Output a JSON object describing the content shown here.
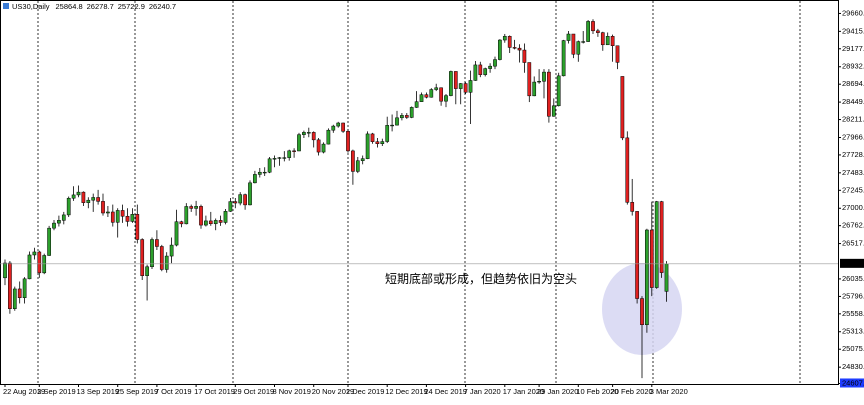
{
  "chart_data": {
    "type": "candlestick",
    "title": "US30,Daily",
    "annotation": "短期底部或形成，但趋势依旧为空头",
    "up_color": "#2ca02c",
    "down_color": "#e02020",
    "grid": false,
    "ylim": [
      24600,
      29830
    ],
    "yticks": [
      {
        "value": 29660,
        "label": "29660.0"
      },
      29415.5,
      29177.5,
      {
        "value": 28932,
        "label": "28932.0"
      },
      {
        "value": 28694,
        "label": "28694.0"
      },
      28449.5,
      {
        "value": 28211,
        "label": "28211.0"
      },
      {
        "value": 27966,
        "label": "27966.0"
      },
      {
        "value": 27728,
        "label": "27728.0"
      },
      27483.5,
      {
        "value": 27245,
        "label": "27245.0"
      },
      {
        "value": 27000,
        "label": "27000.0"
      },
      {
        "value": 26762,
        "label": "26762.0"
      },
      26517.5,
      {
        "value": 26035,
        "label": "26035.0"
      },
      {
        "value": 25796,
        "label": "25796.0"
      },
      {
        "value": 25558,
        "label": "25558.0"
      },
      25313.5,
      {
        "value": 25075,
        "label": "25075.0"
      },
      {
        "value": 24830,
        "label": "24830.0"
      },
      24607.1
    ],
    "categories": [
      "22 Aug 2019",
      null,
      null,
      null,
      null,
      null,
      null,
      "3 Sep 2019",
      null,
      null,
      null,
      null,
      null,
      null,
      null,
      "13 Sep 2019",
      null,
      null,
      null,
      null,
      null,
      null,
      null,
      "25 Sep 2019",
      null,
      null,
      null,
      null,
      null,
      null,
      null,
      "7 Oct 2019",
      null,
      null,
      null,
      null,
      null,
      null,
      null,
      "17 Oct 2019",
      null,
      null,
      null,
      null,
      null,
      null,
      null,
      "29 Oct 2019",
      null,
      null,
      null,
      null,
      null,
      null,
      null,
      "8 Nov 2019",
      null,
      null,
      null,
      null,
      null,
      null,
      null,
      "20 Nov 2019",
      null,
      null,
      null,
      null,
      null,
      null,
      "2 Dec 2019",
      null,
      null,
      null,
      null,
      null,
      null,
      null,
      "12 Dec 2019",
      null,
      null,
      null,
      null,
      null,
      null,
      null,
      "24 Dec 2019",
      null,
      null,
      null,
      null,
      null,
      null,
      null,
      "7 Jan 2020",
      null,
      null,
      null,
      null,
      null,
      null,
      null,
      "17 Jan 2020",
      null,
      null,
      null,
      null,
      null,
      null,
      "29 Jan 2020",
      null,
      null,
      null,
      null,
      null,
      null,
      null,
      "10 Feb 2020",
      null,
      null,
      null,
      null,
      null,
      null,
      "20 Feb 2020",
      null,
      null,
      null,
      null,
      null,
      null,
      null,
      "3 Mar 2020",
      null,
      null,
      null
    ],
    "candles": [
      [
        26050,
        26300,
        25950,
        26252
      ],
      [
        26252,
        26280,
        25560,
        25628
      ],
      [
        25628,
        25930,
        25600,
        25898
      ],
      [
        25898,
        26000,
        25700,
        25778
      ],
      [
        25778,
        26060,
        25700,
        26036
      ],
      [
        26036,
        26410,
        26030,
        26362
      ],
      [
        26362,
        26460,
        26300,
        26403
      ],
      [
        26403,
        26420,
        26050,
        26118
      ],
      [
        26118,
        26380,
        26100,
        26355
      ],
      [
        26355,
        26760,
        26350,
        26728
      ],
      [
        26728,
        26840,
        26700,
        26797
      ],
      [
        26797,
        26900,
        26750,
        26835
      ],
      [
        26835,
        26950,
        26780,
        26909
      ],
      [
        26909,
        27160,
        26880,
        27137
      ],
      [
        27137,
        27300,
        27100,
        27182
      ],
      [
        27182,
        27310,
        27150,
        27220
      ],
      [
        27220,
        27230,
        27030,
        27076
      ],
      [
        27076,
        27150,
        27000,
        27110
      ],
      [
        27110,
        27200,
        26950,
        27147
      ],
      [
        27147,
        27250,
        27050,
        27094
      ],
      [
        27094,
        27200,
        26900,
        26935
      ],
      [
        26935,
        27030,
        26880,
        26949
      ],
      [
        26949,
        27050,
        26750,
        26808
      ],
      [
        26808,
        27000,
        26600,
        26970
      ],
      [
        26970,
        27050,
        26800,
        26891
      ],
      [
        26891,
        27000,
        26750,
        26820
      ],
      [
        26820,
        27000,
        26800,
        26917
      ],
      [
        26917,
        27050,
        26520,
        26573
      ],
      [
        26573,
        26590,
        26020,
        26079
      ],
      [
        26079,
        26230,
        25740,
        26201
      ],
      [
        26201,
        26600,
        26170,
        26573
      ],
      [
        26573,
        26700,
        26430,
        26478
      ],
      [
        26478,
        26500,
        26140,
        26164
      ],
      [
        26164,
        26400,
        26120,
        26347
      ],
      [
        26347,
        26600,
        26250,
        26497
      ],
      [
        26497,
        26980,
        26480,
        26816
      ],
      [
        26816,
        26830,
        26740,
        26787
      ],
      [
        26787,
        27070,
        26780,
        27024
      ],
      [
        27024,
        27050,
        26950,
        26998
      ],
      [
        26998,
        27100,
        26900,
        27026
      ],
      [
        27026,
        27050,
        26720,
        26770
      ],
      [
        26770,
        26900,
        26750,
        26827
      ],
      [
        26827,
        26950,
        26760,
        26788
      ],
      [
        26788,
        26860,
        26700,
        26834
      ],
      [
        26834,
        26900,
        26760,
        26806
      ],
      [
        26806,
        26990,
        26780,
        26958
      ],
      [
        26958,
        27140,
        26950,
        27091
      ],
      [
        27091,
        27140,
        27000,
        27071
      ],
      [
        27071,
        27220,
        27040,
        27186
      ],
      [
        27186,
        27200,
        26980,
        27046
      ],
      [
        27046,
        27380,
        27040,
        27347
      ],
      [
        27347,
        27510,
        27340,
        27462
      ],
      [
        27462,
        27550,
        27420,
        27492
      ],
      [
        27492,
        27560,
        27440,
        27492
      ],
      [
        27492,
        27700,
        27480,
        27675
      ],
      [
        27675,
        27720,
        27560,
        27681
      ],
      [
        27681,
        27700,
        27580,
        27691
      ],
      [
        27691,
        27780,
        27640,
        27691
      ],
      [
        27691,
        27800,
        27650,
        27784
      ],
      [
        27784,
        27820,
        27690,
        27782
      ],
      [
        27782,
        28030,
        27780,
        28005
      ],
      [
        28005,
        28060,
        27960,
        28036
      ],
      [
        28036,
        28100,
        27970,
        28036
      ],
      [
        28036,
        28050,
        27830,
        27934
      ],
      [
        27934,
        27960,
        27720,
        27767
      ],
      [
        27767,
        27900,
        27750,
        27876
      ],
      [
        27876,
        28090,
        27870,
        28066
      ],
      [
        28066,
        28140,
        28030,
        28122
      ],
      [
        28122,
        28180,
        28100,
        28164
      ],
      [
        28164,
        28170,
        28030,
        28051
      ],
      [
        28051,
        28080,
        27760,
        27783
      ],
      [
        27783,
        27800,
        27320,
        27503
      ],
      [
        27503,
        27700,
        27480,
        27649
      ],
      [
        27649,
        27720,
        27600,
        27677
      ],
      [
        27677,
        28050,
        27670,
        28015
      ],
      [
        28015,
        28030,
        27880,
        27909
      ],
      [
        27909,
        27960,
        27830,
        27881
      ],
      [
        27881,
        27950,
        27850,
        27911
      ],
      [
        27911,
        28250,
        27890,
        28132
      ],
      [
        28132,
        28280,
        28050,
        28135
      ],
      [
        28135,
        28330,
        28130,
        28235
      ],
      [
        28235,
        28300,
        28200,
        28268
      ],
      [
        28268,
        28300,
        28220,
        28240
      ],
      [
        28240,
        28390,
        28230,
        28377
      ],
      [
        28377,
        28600,
        28370,
        28455
      ],
      [
        28455,
        28580,
        28450,
        28551
      ],
      [
        28551,
        28580,
        28500,
        28516
      ],
      [
        28516,
        28640,
        28510,
        28621
      ],
      [
        28621,
        28700,
        28600,
        28645
      ],
      [
        28645,
        28650,
        28400,
        28462
      ],
      [
        28462,
        28560,
        28380,
        28538
      ],
      [
        28538,
        28880,
        28530,
        28868
      ],
      [
        28868,
        28870,
        28420,
        28634
      ],
      [
        28634,
        28710,
        28420,
        28703
      ],
      [
        28703,
        28720,
        28560,
        28583
      ],
      [
        28583,
        28880,
        28150,
        28745
      ],
      [
        28745,
        29010,
        28740,
        28957
      ],
      [
        28957,
        29000,
        28790,
        28824
      ],
      [
        28824,
        28920,
        28800,
        28907
      ],
      [
        28907,
        28980,
        28850,
        28940
      ],
      [
        28940,
        29070,
        28900,
        29030
      ],
      [
        29030,
        29310,
        29020,
        29297
      ],
      [
        29297,
        29380,
        29260,
        29348
      ],
      [
        29348,
        29360,
        29120,
        29196
      ],
      [
        29196,
        29300,
        29170,
        29186
      ],
      [
        29186,
        29240,
        28990,
        29160
      ],
      [
        29160,
        29250,
        28850,
        28990
      ],
      [
        28990,
        28990,
        28450,
        28535
      ],
      [
        28535,
        28800,
        28530,
        28723
      ],
      [
        28723,
        28900,
        28700,
        28734
      ],
      [
        28734,
        28900,
        28500,
        28859
      ],
      [
        28859,
        28900,
        28170,
        28256
      ],
      [
        28256,
        28500,
        28250,
        28399
      ],
      [
        28399,
        28850,
        28390,
        28808
      ],
      [
        28808,
        29300,
        28800,
        29290
      ],
      [
        29290,
        29420,
        29250,
        29379
      ],
      [
        29379,
        29380,
        29050,
        29103
      ],
      [
        29103,
        29290,
        29000,
        29276
      ],
      [
        29276,
        29420,
        29250,
        29276
      ],
      [
        29276,
        29570,
        29270,
        29551
      ],
      [
        29551,
        29580,
        29380,
        29423
      ],
      [
        29423,
        29450,
        29340,
        29398
      ],
      [
        29398,
        29410,
        29150,
        29232
      ],
      [
        29232,
        29400,
        29230,
        29348
      ],
      [
        29348,
        29370,
        29000,
        29219
      ],
      [
        29219,
        29220,
        28900,
        28992
      ],
      [
        28800,
        28800,
        27930,
        27961
      ],
      [
        27961,
        28050,
        27050,
        27081
      ],
      [
        27081,
        27400,
        26900,
        26957
      ],
      [
        26957,
        26960,
        25700,
        25767
      ],
      [
        25767,
        25800,
        24680,
        25409
      ],
      [
        25409,
        26720,
        25300,
        26703
      ],
      [
        26703,
        27090,
        25800,
        25917
      ],
      [
        25917,
        27100,
        25900,
        27091
      ],
      [
        27091,
        27100,
        26050,
        26121
      ],
      [
        25864.8,
        26278.7,
        25722.9,
        26240.7
      ]
    ]
  }
}
